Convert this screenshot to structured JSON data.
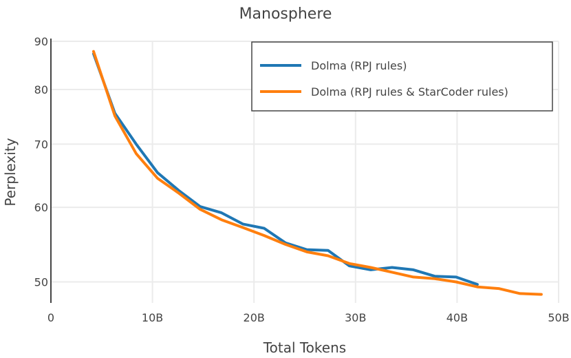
{
  "chart_data": {
    "type": "line",
    "title": "Manosphere",
    "xlabel": "Total Tokens",
    "ylabel": "Perplexity",
    "xlim": [
      0,
      50
    ],
    "ylim": [
      47.5,
      90
    ],
    "y_scale": "log",
    "x_unit": "billions of tokens",
    "x_ticks": [
      {
        "value": 0,
        "label": "0"
      },
      {
        "value": 10,
        "label": "10B"
      },
      {
        "value": 20,
        "label": "20B"
      },
      {
        "value": 30,
        "label": "30B"
      },
      {
        "value": 40,
        "label": "40B"
      },
      {
        "value": 50,
        "label": "50B"
      }
    ],
    "y_ticks": [
      {
        "value": 50,
        "label": "50"
      },
      {
        "value": 60,
        "label": "60"
      },
      {
        "value": 70,
        "label": "70"
      },
      {
        "value": 80,
        "label": "80"
      },
      {
        "value": 90,
        "label": "90"
      }
    ],
    "grid": true,
    "legend_position": "top-right",
    "series": [
      {
        "name": "Dolma (RPJ rules)",
        "color": "#1f77b4",
        "x": [
          4.2,
          6.3,
          8.4,
          10.5,
          12.6,
          14.7,
          16.8,
          18.9,
          21.0,
          23.1,
          25.2,
          27.3,
          29.4,
          31.5,
          33.6,
          35.7,
          37.8,
          39.9,
          42.0
        ],
        "y": [
          87.3,
          75.5,
          70.0,
          65.3,
          62.5,
          60.1,
          59.2,
          57.6,
          57.0,
          55.0,
          54.1,
          54.0,
          52.0,
          51.5,
          51.8,
          51.5,
          50.7,
          50.6,
          49.7
        ]
      },
      {
        "name": "Dolma (RPJ rules & StarCoder rules)",
        "color": "#ff7f0e",
        "x": [
          4.2,
          6.3,
          8.4,
          10.5,
          12.6,
          14.7,
          16.8,
          18.9,
          21.0,
          23.1,
          25.2,
          27.3,
          29.4,
          31.5,
          33.6,
          35.7,
          37.8,
          39.9,
          42.0,
          44.1,
          46.2,
          48.3
        ],
        "y": [
          87.8,
          75.0,
          68.4,
          64.4,
          62.1,
          59.7,
          58.2,
          57.1,
          56.0,
          54.8,
          53.8,
          53.3,
          52.3,
          51.8,
          51.2,
          50.6,
          50.4,
          50.0,
          49.4,
          49.2,
          48.6,
          48.5
        ]
      }
    ]
  }
}
